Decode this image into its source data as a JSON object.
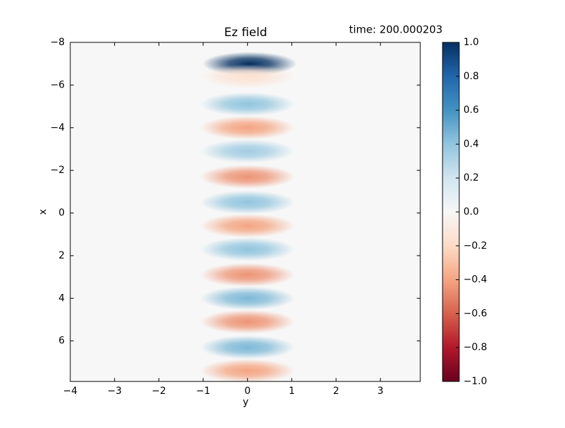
{
  "chart_data": {
    "type": "heatmap",
    "title": "Ez field",
    "annotation": "time: 200.000203",
    "x_label": "y",
    "y_label": "x",
    "x": [
      0.05,
      0.0,
      0.0,
      0.0,
      0.0,
      0.0,
      0.0,
      0.0,
      0.0,
      0.0,
      0.0,
      0.0,
      0.0,
      0.0
    ],
    "y": [
      -7.0,
      -6.4,
      -5.1,
      -4.0,
      -2.9,
      -1.7,
      -0.5,
      0.6,
      1.7,
      2.9,
      4.0,
      5.1,
      6.3,
      7.4
    ],
    "values": [
      1.0,
      -0.15,
      0.4,
      -0.4,
      0.35,
      -0.45,
      0.4,
      -0.4,
      0.4,
      -0.45,
      0.45,
      -0.45,
      0.45,
      -0.4
    ],
    "xlim": [
      -4,
      3.9
    ],
    "ylim": [
      -8,
      7.9
    ],
    "y_inverted": true,
    "xticks": [
      {
        "value": -4,
        "label": "−4"
      },
      {
        "value": -3,
        "label": "−3"
      },
      {
        "value": -2,
        "label": "−2"
      },
      {
        "value": -1,
        "label": "−1"
      },
      0,
      1,
      2,
      3
    ],
    "yticks": [
      {
        "value": -8,
        "label": "−8"
      },
      {
        "value": -6,
        "label": "−6"
      },
      {
        "value": -4,
        "label": "−4"
      },
      {
        "value": -2,
        "label": "−2"
      },
      0,
      2,
      4,
      6
    ],
    "colormap": "RdBu",
    "clim": [
      -1,
      1
    ],
    "cticks": [
      {
        "value": -1,
        "label": "−1.0"
      },
      {
        "value": -0.8,
        "label": "−0.8"
      },
      {
        "value": -0.6,
        "label": "−0.6"
      },
      {
        "value": -0.4,
        "label": "−0.4"
      },
      {
        "value": -0.2,
        "label": "−0.2"
      },
      {
        "value": 0,
        "label": "0.0"
      },
      {
        "value": 0.2,
        "label": "0.2"
      },
      {
        "value": 0.4,
        "label": "0.4"
      },
      {
        "value": 0.6,
        "label": "0.6"
      },
      {
        "value": 0.8,
        "label": "0.8"
      },
      {
        "value": 1,
        "label": "1.0"
      }
    ]
  }
}
